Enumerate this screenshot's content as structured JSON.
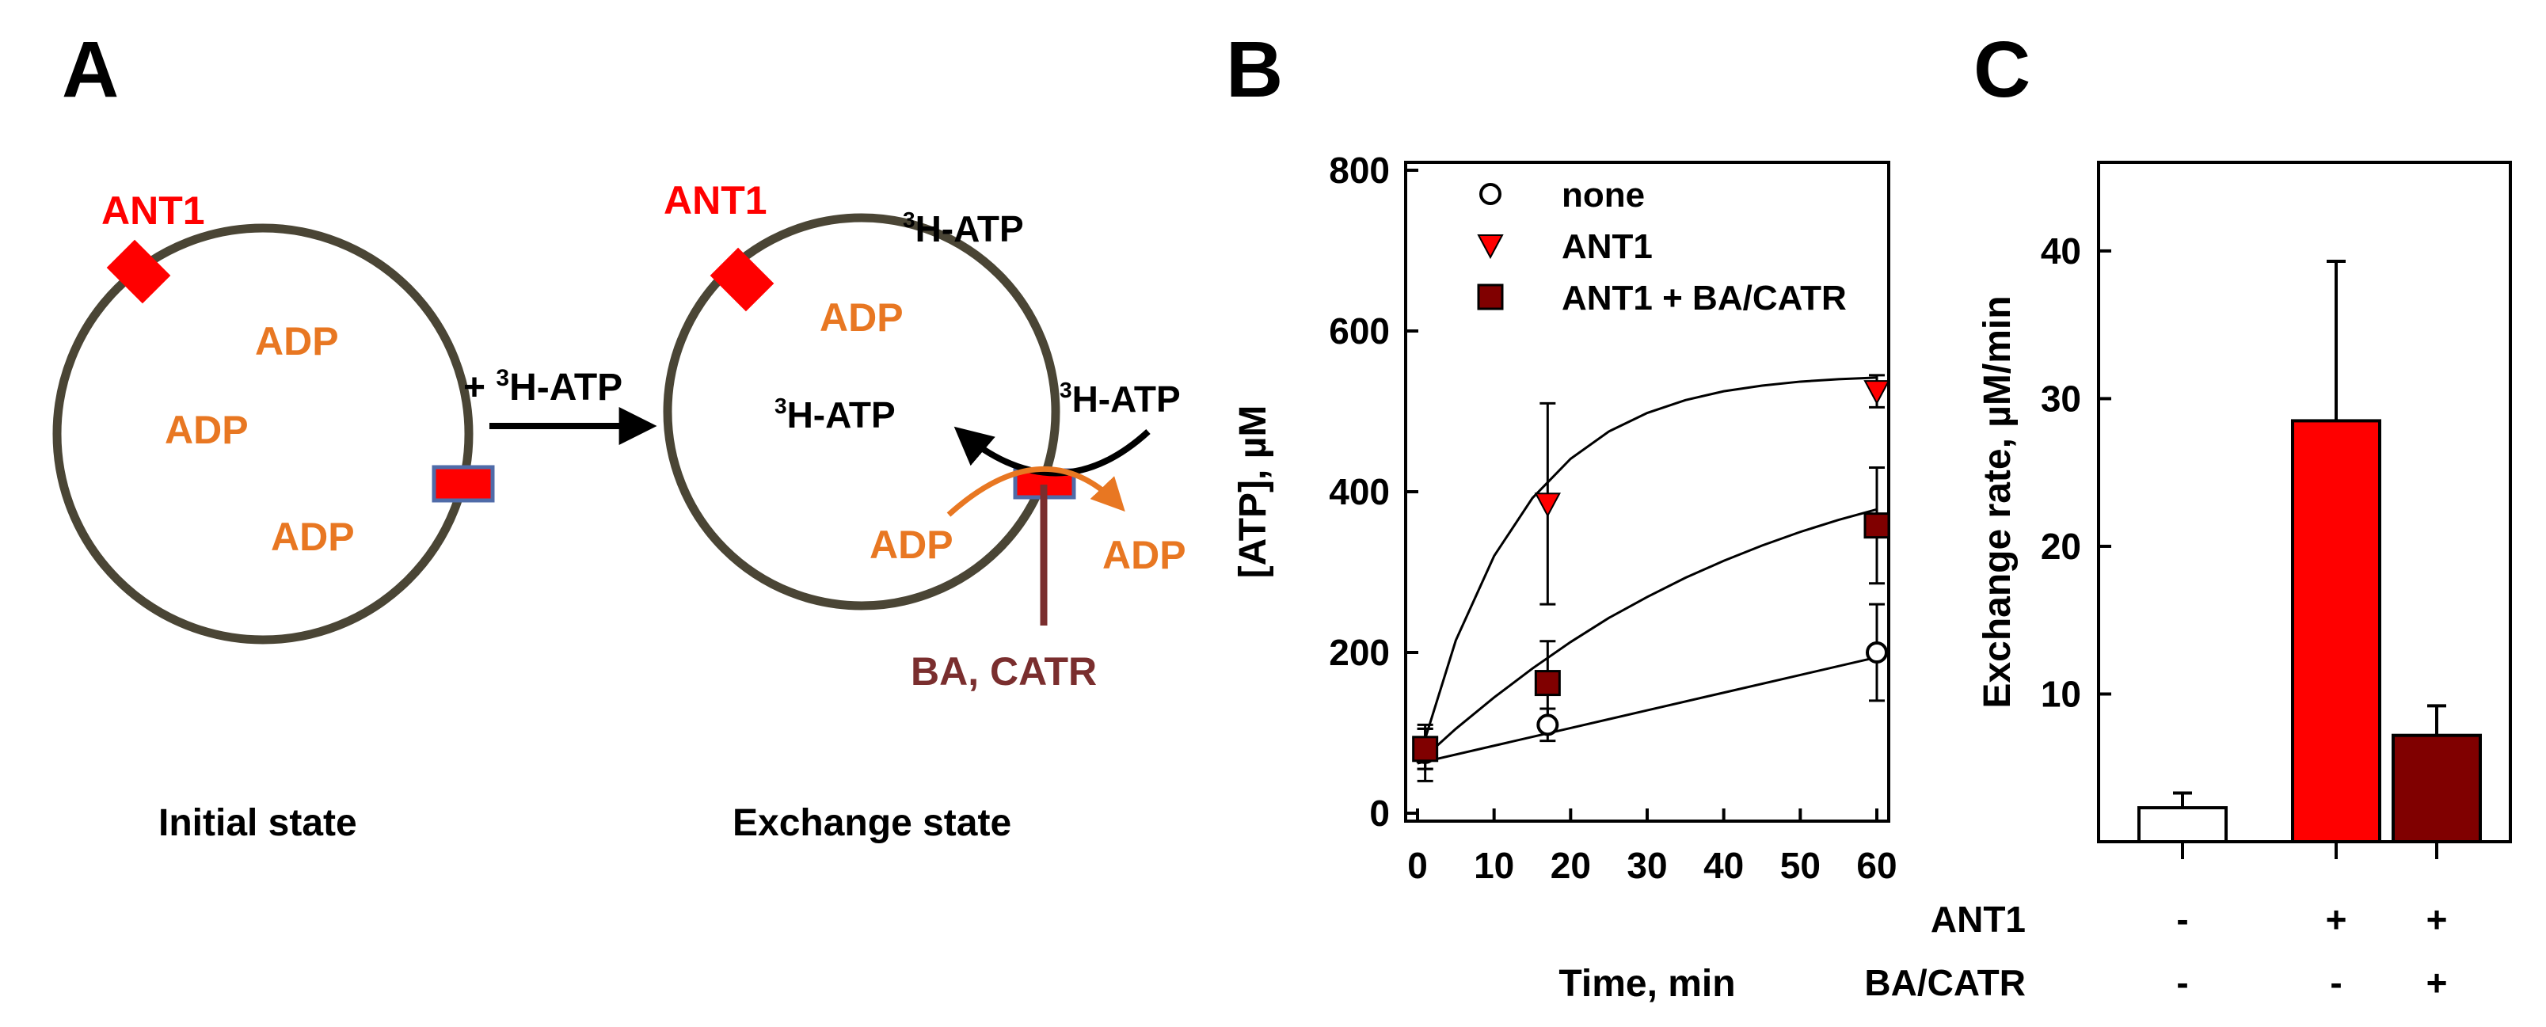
{
  "colors": {
    "red": "#FF0000",
    "dark_red": "#800000",
    "orange": "#E87722",
    "membrane": "#4A4535",
    "ba_line": "#7A2E2E",
    "black": "#000000",
    "white": "#FFFFFF",
    "blue_outline": "#4F6BA8"
  },
  "panel_a": {
    "letter": "A",
    "ant1_left": "ANT1",
    "ant1_right": "ANT1",
    "adp_1": "ADP",
    "adp_2": "ADP",
    "adp_3": "ADP",
    "adp_4": "ADP",
    "adp_5": "ADP",
    "adp_6": "ADP",
    "plus_atp_plus": "+ ",
    "atp_sup": "3",
    "atp_text": "H-ATP",
    "ba_catr": "BA, CATR",
    "initial_state": "Initial state",
    "exchange_state": "Exchange state"
  },
  "panel_b": {
    "letter": "B"
  },
  "panel_c": {
    "letter": "C",
    "row1_label": "ANT1",
    "row1_marks": [
      "-",
      "+",
      "+"
    ],
    "row2_label": "BA/CATR",
    "row2_marks": [
      "-",
      "-",
      "+"
    ]
  },
  "chart_data": [
    {
      "type": "line",
      "title": "",
      "xlabel": "Time, min",
      "ylabel": "[ATP], µM",
      "xlim": [
        0,
        60
      ],
      "ylim": [
        0,
        800
      ],
      "xticks": [
        0,
        10,
        20,
        30,
        40,
        50,
        60
      ],
      "yticks": [
        0,
        200,
        400,
        600,
        800
      ],
      "legend_position": "top-left",
      "series": [
        {
          "name": "none",
          "marker": "circle-open",
          "color": "#000000",
          "x": [
            1,
            17,
            60
          ],
          "y": [
            75,
            110,
            200
          ],
          "err": [
            35,
            20,
            60
          ],
          "fit": [
            [
              0,
              62
            ],
            [
              10,
              84
            ],
            [
              20,
              106
            ],
            [
              30,
              128
            ],
            [
              40,
              150
            ],
            [
              50,
              172
            ],
            [
              60,
              194
            ]
          ]
        },
        {
          "name": "ANT1",
          "marker": "triangle-down",
          "color": "#FF0000",
          "x": [
            1,
            17,
            60
          ],
          "y": [
            80,
            385,
            525
          ],
          "err": [
            25,
            125,
            20
          ],
          "fit": [
            [
              0,
              62
            ],
            [
              5,
              215
            ],
            [
              10,
              320
            ],
            [
              15,
              392
            ],
            [
              20,
              441
            ],
            [
              25,
              475
            ],
            [
              30,
              498
            ],
            [
              35,
              514
            ],
            [
              40,
              525
            ],
            [
              45,
              532
            ],
            [
              50,
              537
            ],
            [
              55,
              540
            ],
            [
              60,
              542
            ]
          ]
        },
        {
          "name": "ANT1 + BA/CATR",
          "marker": "square",
          "color": "#800000",
          "x": [
            1,
            17,
            60
          ],
          "y": [
            80,
            162,
            358
          ],
          "err": [
            25,
            52,
            72
          ],
          "fit": [
            [
              0,
              62
            ],
            [
              5,
              105
            ],
            [
              10,
              144
            ],
            [
              15,
              180
            ],
            [
              20,
              213
            ],
            [
              25,
              243
            ],
            [
              30,
              269
            ],
            [
              35,
              293
            ],
            [
              40,
              314
            ],
            [
              45,
              333
            ],
            [
              50,
              350
            ],
            [
              55,
              365
            ],
            [
              60,
              378
            ]
          ]
        }
      ]
    },
    {
      "type": "bar",
      "title": "",
      "xlabel": "",
      "ylabel": "Exchange rate, µM/min",
      "ylim": [
        0,
        46
      ],
      "yticks": [
        10,
        20,
        30,
        40
      ],
      "categories": [
        "none",
        "ANT1",
        "ANT1 + BA/CATR"
      ],
      "values": [
        2.3,
        28.5,
        7.2
      ],
      "errors": [
        1.0,
        10.8,
        2.0
      ],
      "colors": [
        "#FFFFFF",
        "#FF0000",
        "#800000"
      ]
    }
  ]
}
